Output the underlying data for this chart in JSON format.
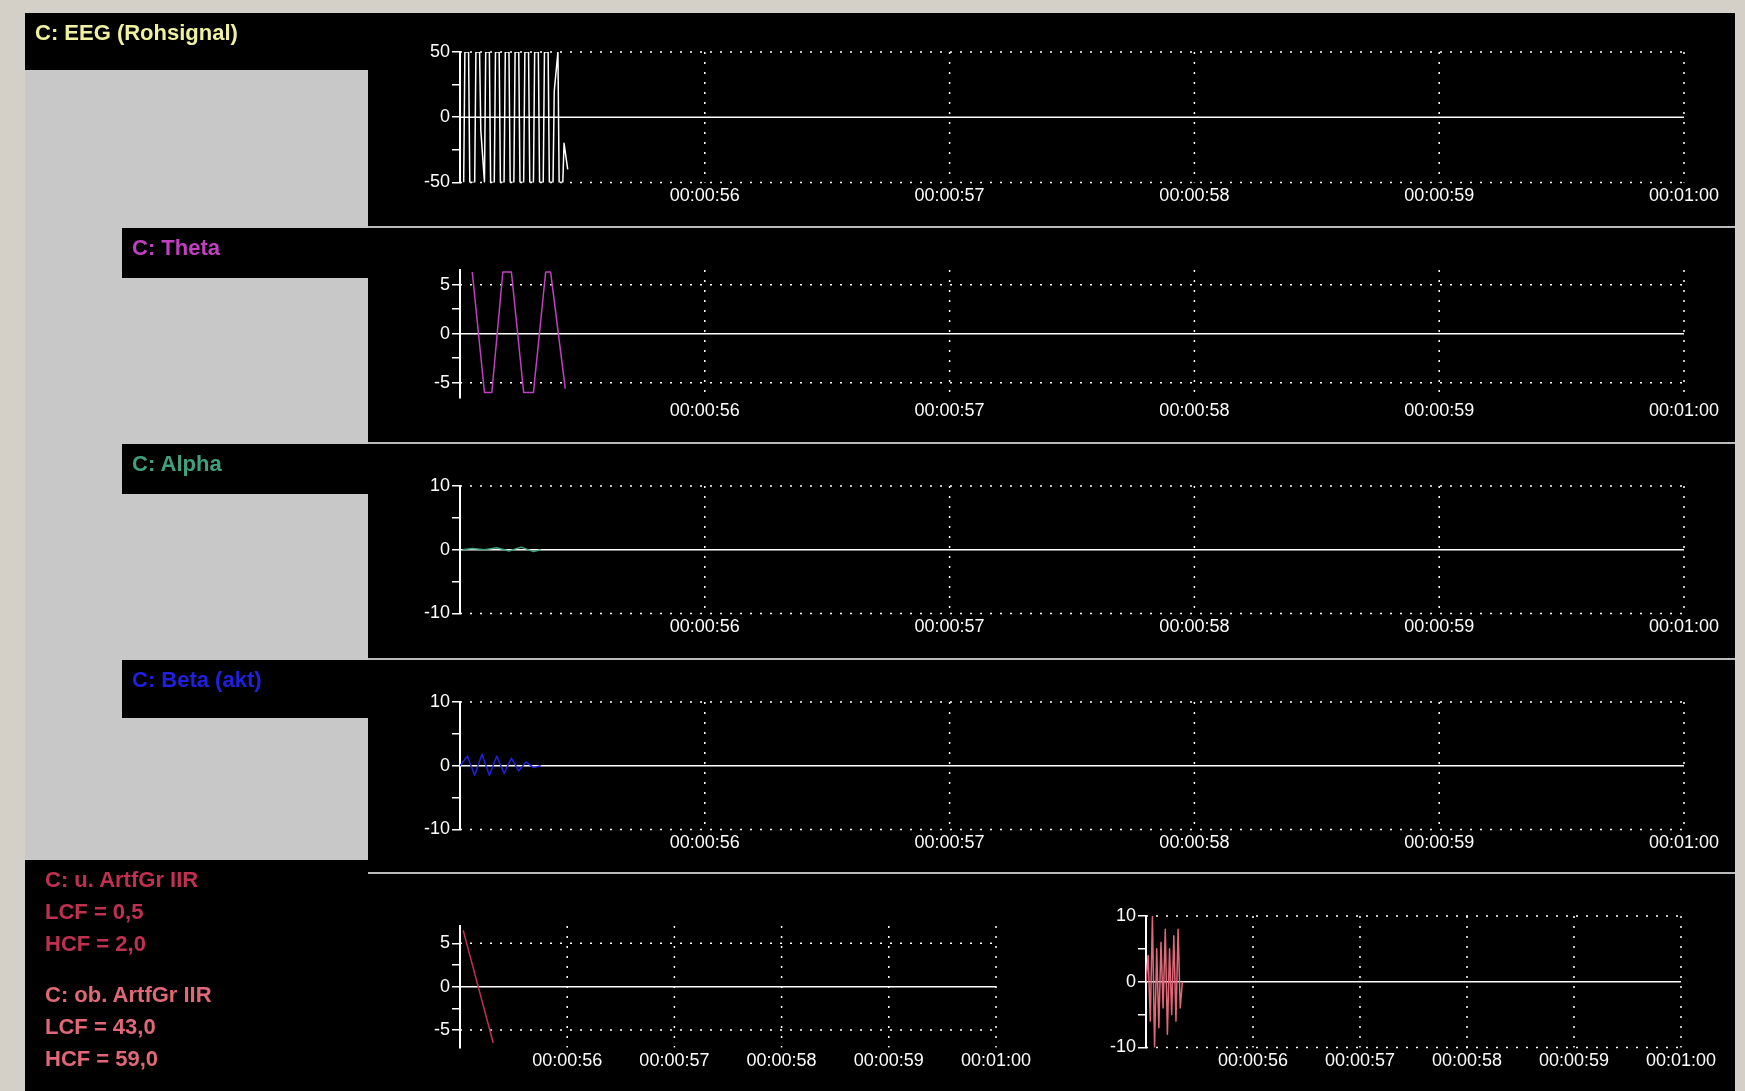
{
  "chart_data": [
    {
      "type": "line",
      "xlim": [
        55,
        60
      ],
      "xticks": [
        {
          "value": 56,
          "label": "00:00:56"
        },
        {
          "value": 57,
          "label": "00:00:57"
        },
        {
          "value": 58,
          "label": "00:00:58"
        },
        {
          "value": 59,
          "label": "00:00:59"
        },
        {
          "value": 60,
          "label": "00:01:00"
        }
      ],
      "ylim": [
        -50,
        50
      ],
      "yticks": [
        -50,
        {
          "value": -25,
          "label": null
        },
        0,
        {
          "value": 25,
          "label": null
        },
        50
      ],
      "grid": true,
      "legend": false,
      "marker": "none",
      "series": [
        {
          "name": "C: EEG (Rohsignal)",
          "color": "#ffffff",
          "x": [
            55.015,
            55.02,
            55.035,
            55.04,
            55.06,
            55.065,
            55.08,
            55.085,
            55.1,
            55.105,
            55.12,
            55.125,
            55.14,
            55.145,
            55.16,
            55.165,
            55.18,
            55.185,
            55.2,
            55.205,
            55.22,
            55.225,
            55.24,
            55.245,
            55.26,
            55.265,
            55.28,
            55.285,
            55.3,
            55.305,
            55.32,
            55.325,
            55.34,
            55.345,
            55.36,
            55.365,
            55.38,
            55.385,
            55.4,
            55.405,
            55.42,
            55.425,
            55.44
          ],
          "values": [
            -50,
            50,
            50,
            -50,
            -50,
            50,
            50,
            -10,
            -50,
            50,
            50,
            -50,
            -50,
            50,
            50,
            -50,
            -50,
            50,
            50,
            -50,
            -50,
            50,
            50,
            -50,
            -50,
            50,
            50,
            -50,
            -50,
            50,
            50,
            -50,
            -50,
            50,
            50,
            -50,
            -50,
            20,
            50,
            -50,
            -50,
            -20,
            -40
          ]
        }
      ]
    },
    {
      "type": "line",
      "xlim": [
        55,
        60
      ],
      "xticks": [
        {
          "value": 56,
          "label": "00:00:56"
        },
        {
          "value": 57,
          "label": "00:00:57"
        },
        {
          "value": 58,
          "label": "00:00:58"
        },
        {
          "value": 59,
          "label": "00:00:59"
        },
        {
          "value": 60,
          "label": "00:01:00"
        }
      ],
      "ylim": [
        -6.5,
        6.5
      ],
      "yticks": [
        -5,
        {
          "value": -2.5,
          "label": null
        },
        0,
        {
          "value": 2.5,
          "label": null
        },
        5
      ],
      "grid": true,
      "legend": false,
      "marker": "none",
      "series": [
        {
          "name": "C: Theta",
          "color": "#c040c0",
          "x": [
            55.05,
            55.1,
            55.13,
            55.175,
            55.21,
            55.26,
            55.3,
            55.35,
            55.37,
            55.43
          ],
          "values": [
            6.3,
            -6,
            -6,
            6.3,
            6.3,
            -6,
            -6,
            6.3,
            6.3,
            -5.6
          ]
        }
      ]
    },
    {
      "type": "line",
      "xlim": [
        55,
        60
      ],
      "xticks": [
        {
          "value": 56,
          "label": "00:00:56"
        },
        {
          "value": 57,
          "label": "00:00:57"
        },
        {
          "value": 58,
          "label": "00:00:58"
        },
        {
          "value": 59,
          "label": "00:00:59"
        },
        {
          "value": 60,
          "label": "00:01:00"
        }
      ],
      "ylim": [
        -10,
        10
      ],
      "yticks": [
        -10,
        {
          "value": -5,
          "label": null
        },
        0,
        {
          "value": 5,
          "label": null
        },
        10
      ],
      "grid": true,
      "legend": false,
      "marker": "none",
      "series": [
        {
          "name": "C: Alpha",
          "color": "#40a080",
          "x": [
            55.01,
            55.05,
            55.1,
            55.15,
            55.2,
            55.25,
            55.3,
            55.33
          ],
          "values": [
            0,
            0.2,
            0,
            0.3,
            -0.2,
            0.4,
            -0.3,
            0
          ]
        }
      ]
    },
    {
      "type": "line",
      "xlim": [
        55,
        60
      ],
      "xticks": [
        {
          "value": 56,
          "label": "00:00:56"
        },
        {
          "value": 57,
          "label": "00:00:57"
        },
        {
          "value": 58,
          "label": "00:00:58"
        },
        {
          "value": 59,
          "label": "00:00:59"
        },
        {
          "value": 60,
          "label": "00:01:00"
        }
      ],
      "ylim": [
        -10,
        10
      ],
      "yticks": [
        -10,
        {
          "value": -5,
          "label": null
        },
        0,
        {
          "value": 5,
          "label": null
        },
        10
      ],
      "grid": true,
      "legend": false,
      "marker": "none",
      "series": [
        {
          "name": "C: Beta (akt)",
          "color": "#2020e0",
          "x": [
            55,
            55.03,
            55.06,
            55.09,
            55.12,
            55.15,
            55.18,
            55.21,
            55.24,
            55.27,
            55.3,
            55.33
          ],
          "values": [
            0,
            1.5,
            -1.5,
            1.8,
            -1.5,
            1.5,
            -1.2,
            1.2,
            -0.8,
            0.6,
            -0.3,
            0
          ]
        }
      ]
    },
    {
      "type": "line",
      "annotations": [
        "LCF = 0,5",
        "HCF = 2,0"
      ],
      "xlim": [
        55,
        60
      ],
      "xticks": [
        {
          "value": 56,
          "label": "00:00:56"
        },
        {
          "value": 57,
          "label": "00:00:57"
        },
        {
          "value": 58,
          "label": "00:00:58"
        },
        {
          "value": 59,
          "label": "00:00:59"
        },
        {
          "value": 60,
          "label": "00:01:00"
        }
      ],
      "ylim": [
        -7,
        7
      ],
      "yticks": [
        -5,
        {
          "value": -2.5,
          "label": null
        },
        0,
        {
          "value": 2.5,
          "label": null
        },
        5
      ],
      "grid": true,
      "legend": false,
      "marker": "none",
      "series": [
        {
          "name": "C: u. ArtfGr IIR",
          "color": "#c03050",
          "x": [
            55.03,
            55.31
          ],
          "values": [
            6.5,
            -6.5
          ]
        }
      ]
    },
    {
      "type": "line",
      "annotations": [
        "LCF = 43,0",
        "HCF = 59,0"
      ],
      "xlim": [
        55,
        60
      ],
      "xticks": [
        {
          "value": 56,
          "label": "00:00:56"
        },
        {
          "value": 57,
          "label": "00:00:57"
        },
        {
          "value": 58,
          "label": "00:00:58"
        },
        {
          "value": 59,
          "label": "00:00:59"
        },
        {
          "value": 60,
          "label": "00:01:00"
        }
      ],
      "ylim": [
        -10,
        10
      ],
      "yticks": [
        -10,
        {
          "value": -5,
          "label": null
        },
        0,
        {
          "value": 5,
          "label": null
        },
        10
      ],
      "grid": true,
      "legend": false,
      "marker": "none",
      "series": [
        {
          "name": "C: ob. ArtfGr IIR",
          "color": "#e06878",
          "x": [
            55,
            55.02,
            55.04,
            55.06,
            55.08,
            55.1,
            55.12,
            55.14,
            55.16,
            55.18,
            55.2,
            55.22,
            55.24,
            55.26,
            55.28,
            55.3,
            55.32,
            55.34
          ],
          "values": [
            0,
            4,
            -6,
            10,
            -10,
            5,
            -7,
            6,
            -4,
            8,
            -8,
            5,
            -5,
            7,
            -6,
            8,
            -4,
            0
          ]
        }
      ]
    }
  ]
}
